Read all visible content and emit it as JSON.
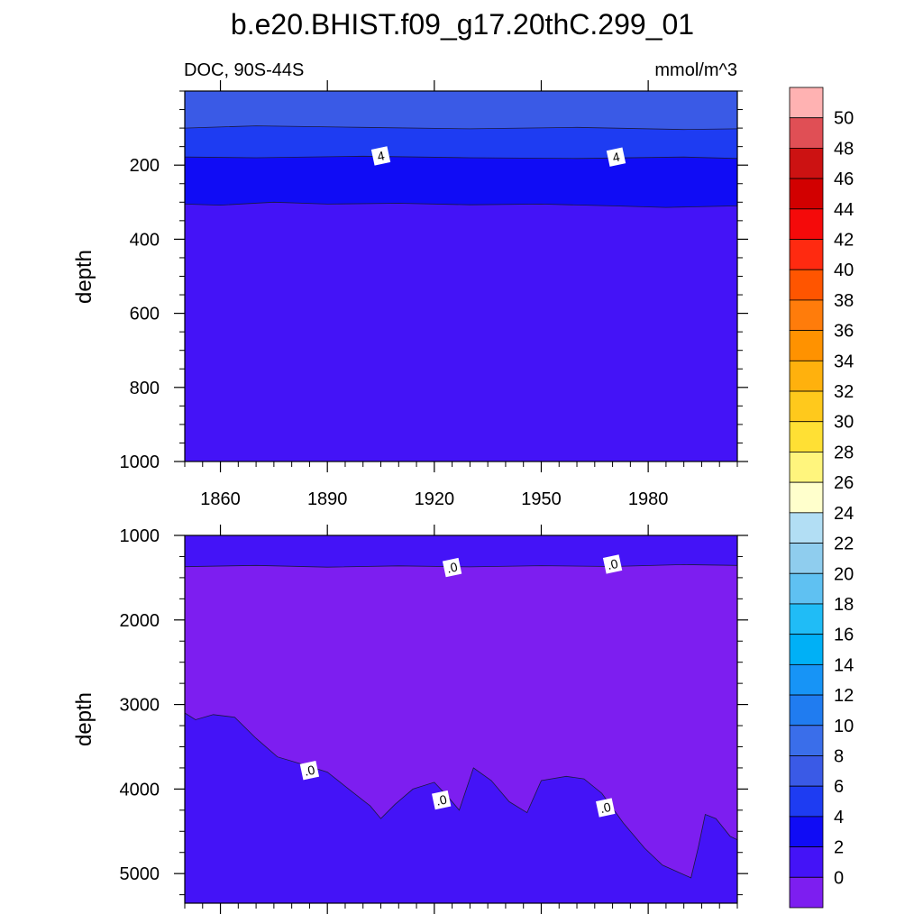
{
  "title": "b.e20.BHIST.f09_g17.20thC.299_01",
  "chart_data": [
    {
      "type": "heatmap",
      "variant": "filled-contour",
      "left_label": "DOC, 90S-44S",
      "right_label": "mmol/m^3",
      "ylabel": "depth",
      "y_reversed": true,
      "ylim": [
        0,
        1000
      ],
      "xlim": [
        1850,
        2005
      ],
      "x_ticks": [
        1860,
        1890,
        1920,
        1950,
        1980
      ],
      "x_tick_labels": [
        "1860",
        "1890",
        "1920",
        "1950",
        "1980"
      ],
      "y_ticks": [
        200,
        400,
        600,
        800,
        1000
      ],
      "y_tick_labels": [
        "200",
        "400",
        "600",
        "800",
        "1000"
      ],
      "contour_labels": [
        {
          "text": "4",
          "x": 1905,
          "y": 175
        },
        {
          "text": "4",
          "x": 1971,
          "y": 178
        }
      ],
      "bands": [
        {
          "level_range": [
            6,
            8
          ],
          "color": "#3a5ae6",
          "boundary_depth": [
            {
              "x": 1850,
              "y": 100
            },
            {
              "x": 1870,
              "y": 94
            },
            {
              "x": 1900,
              "y": 98
            },
            {
              "x": 1930,
              "y": 102
            },
            {
              "x": 1960,
              "y": 98
            },
            {
              "x": 1990,
              "y": 104
            },
            {
              "x": 2005,
              "y": 102
            }
          ]
        },
        {
          "level_range": [
            4,
            6
          ],
          "color": "#1e3cf2",
          "boundary_depth": [
            {
              "x": 1850,
              "y": 178
            },
            {
              "x": 1870,
              "y": 180
            },
            {
              "x": 1900,
              "y": 176
            },
            {
              "x": 1930,
              "y": 180
            },
            {
              "x": 1960,
              "y": 182
            },
            {
              "x": 1990,
              "y": 178
            },
            {
              "x": 2005,
              "y": 182
            }
          ]
        },
        {
          "level_range": [
            2,
            4
          ],
          "color": "#100cf5",
          "boundary_depth": [
            {
              "x": 1850,
              "y": 305
            },
            {
              "x": 1860,
              "y": 308
            },
            {
              "x": 1875,
              "y": 300
            },
            {
              "x": 1890,
              "y": 305
            },
            {
              "x": 1910,
              "y": 303
            },
            {
              "x": 1930,
              "y": 307
            },
            {
              "x": 1950,
              "y": 305
            },
            {
              "x": 1970,
              "y": 310
            },
            {
              "x": 1985,
              "y": 314
            },
            {
              "x": 2005,
              "y": 310
            }
          ]
        },
        {
          "level_range": [
            0,
            2
          ],
          "color": "#4413f7",
          "boundary_depth": null
        }
      ]
    },
    {
      "type": "heatmap",
      "variant": "filled-contour",
      "ylabel": "depth",
      "y_reversed": true,
      "ylim": [
        1000,
        5350
      ],
      "xlim": [
        1850,
        2005
      ],
      "x_ticks": [
        1860,
        1890,
        1920,
        1950,
        1980
      ],
      "y_ticks": [
        1000,
        2000,
        3000,
        4000,
        5000
      ],
      "y_tick_labels": [
        "1000",
        "2000",
        "3000",
        "4000",
        "5000"
      ],
      "contour_labels": [
        {
          "text": ".0",
          "x": 1925,
          "y": 1380
        },
        {
          "text": ".0",
          "x": 1970,
          "y": 1340
        },
        {
          "text": ".0",
          "x": 1885,
          "y": 3780
        },
        {
          "text": ".0",
          "x": 1922,
          "y": 4130
        },
        {
          "text": ".0",
          "x": 1968,
          "y": 4220
        }
      ],
      "regions": [
        {
          "level_range": [
            0,
            2
          ],
          "color": "#4413f7",
          "upper_boundary_depth": [
            {
              "x": 1850,
              "y": 1370
            },
            {
              "x": 1870,
              "y": 1355
            },
            {
              "x": 1890,
              "y": 1375
            },
            {
              "x": 1910,
              "y": 1360
            },
            {
              "x": 1930,
              "y": 1372
            },
            {
              "x": 1950,
              "y": 1358
            },
            {
              "x": 1970,
              "y": 1368
            },
            {
              "x": 1990,
              "y": 1345
            },
            {
              "x": 2005,
              "y": 1355
            }
          ]
        },
        {
          "level_range": [
            -2,
            0
          ],
          "color": "#7d1ef0",
          "lower_boundary_depth": [
            {
              "x": 1850,
              "y": 3100
            },
            {
              "x": 1853,
              "y": 3180
            },
            {
              "x": 1858,
              "y": 3120
            },
            {
              "x": 1864,
              "y": 3150
            },
            {
              "x": 1870,
              "y": 3400
            },
            {
              "x": 1876,
              "y": 3620
            },
            {
              "x": 1884,
              "y": 3720
            },
            {
              "x": 1890,
              "y": 3800
            },
            {
              "x": 1896,
              "y": 4000
            },
            {
              "x": 1902,
              "y": 4200
            },
            {
              "x": 1905,
              "y": 4350
            },
            {
              "x": 1909,
              "y": 4180
            },
            {
              "x": 1914,
              "y": 4000
            },
            {
              "x": 1920,
              "y": 3920
            },
            {
              "x": 1924,
              "y": 4100
            },
            {
              "x": 1927,
              "y": 4250
            },
            {
              "x": 1931,
              "y": 3750
            },
            {
              "x": 1936,
              "y": 3900
            },
            {
              "x": 1941,
              "y": 4150
            },
            {
              "x": 1946,
              "y": 4280
            },
            {
              "x": 1950,
              "y": 3900
            },
            {
              "x": 1957,
              "y": 3850
            },
            {
              "x": 1962,
              "y": 3880
            },
            {
              "x": 1967,
              "y": 4050
            },
            {
              "x": 1973,
              "y": 4400
            },
            {
              "x": 1979,
              "y": 4700
            },
            {
              "x": 1984,
              "y": 4900
            },
            {
              "x": 1992,
              "y": 5050
            },
            {
              "x": 1994,
              "y": 4700
            },
            {
              "x": 1996,
              "y": 4300
            },
            {
              "x": 1999,
              "y": 4350
            },
            {
              "x": 2003,
              "y": 4560
            },
            {
              "x": 2005,
              "y": 4600
            }
          ]
        }
      ]
    }
  ],
  "colorbar": {
    "labels": [
      "50",
      "48",
      "46",
      "44",
      "42",
      "40",
      "38",
      "36",
      "34",
      "32",
      "30",
      "28",
      "26",
      "24",
      "22",
      "20",
      "18",
      "16",
      "14",
      "12",
      "10",
      "8",
      "6",
      "4",
      "2",
      "0"
    ],
    "colors_top_to_bottom": [
      "#ffb2b2",
      "#e04f55",
      "#cc1212",
      "#d20000",
      "#f50a0a",
      "#ff2a10",
      "#ff5500",
      "#ff7c0b",
      "#ff9200",
      "#ffb10d",
      "#ffc91c",
      "#ffe034",
      "#fff57d",
      "#ffffcc",
      "#b2def4",
      "#8fcdee",
      "#5fc1f2",
      "#20bcf6",
      "#00b0f6",
      "#1794f6",
      "#207cf0",
      "#3a6eea",
      "#3a5ae6",
      "#1e3cf2",
      "#100cf5",
      "#4413f7",
      "#7d1ef0"
    ]
  }
}
